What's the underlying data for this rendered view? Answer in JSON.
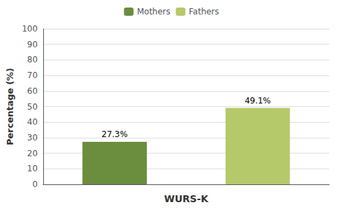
{
  "chart_data": {
    "type": "bar",
    "categories": [
      "Mothers",
      "Fathers"
    ],
    "values": [
      27.3,
      49.1
    ],
    "value_labels": [
      "27.3%",
      "49.1%"
    ],
    "colors": [
      "#6b8e3e",
      "#b5c96a"
    ],
    "xlabel": "WURS-K",
    "ylabel": "Percentage (%)",
    "ylim": [
      0,
      100
    ],
    "yticks": [
      0,
      10,
      20,
      30,
      40,
      50,
      60,
      70,
      80,
      90,
      100
    ],
    "grid": true,
    "legend": "upper center",
    "data_labels": true,
    "tick_labels": "y"
  }
}
